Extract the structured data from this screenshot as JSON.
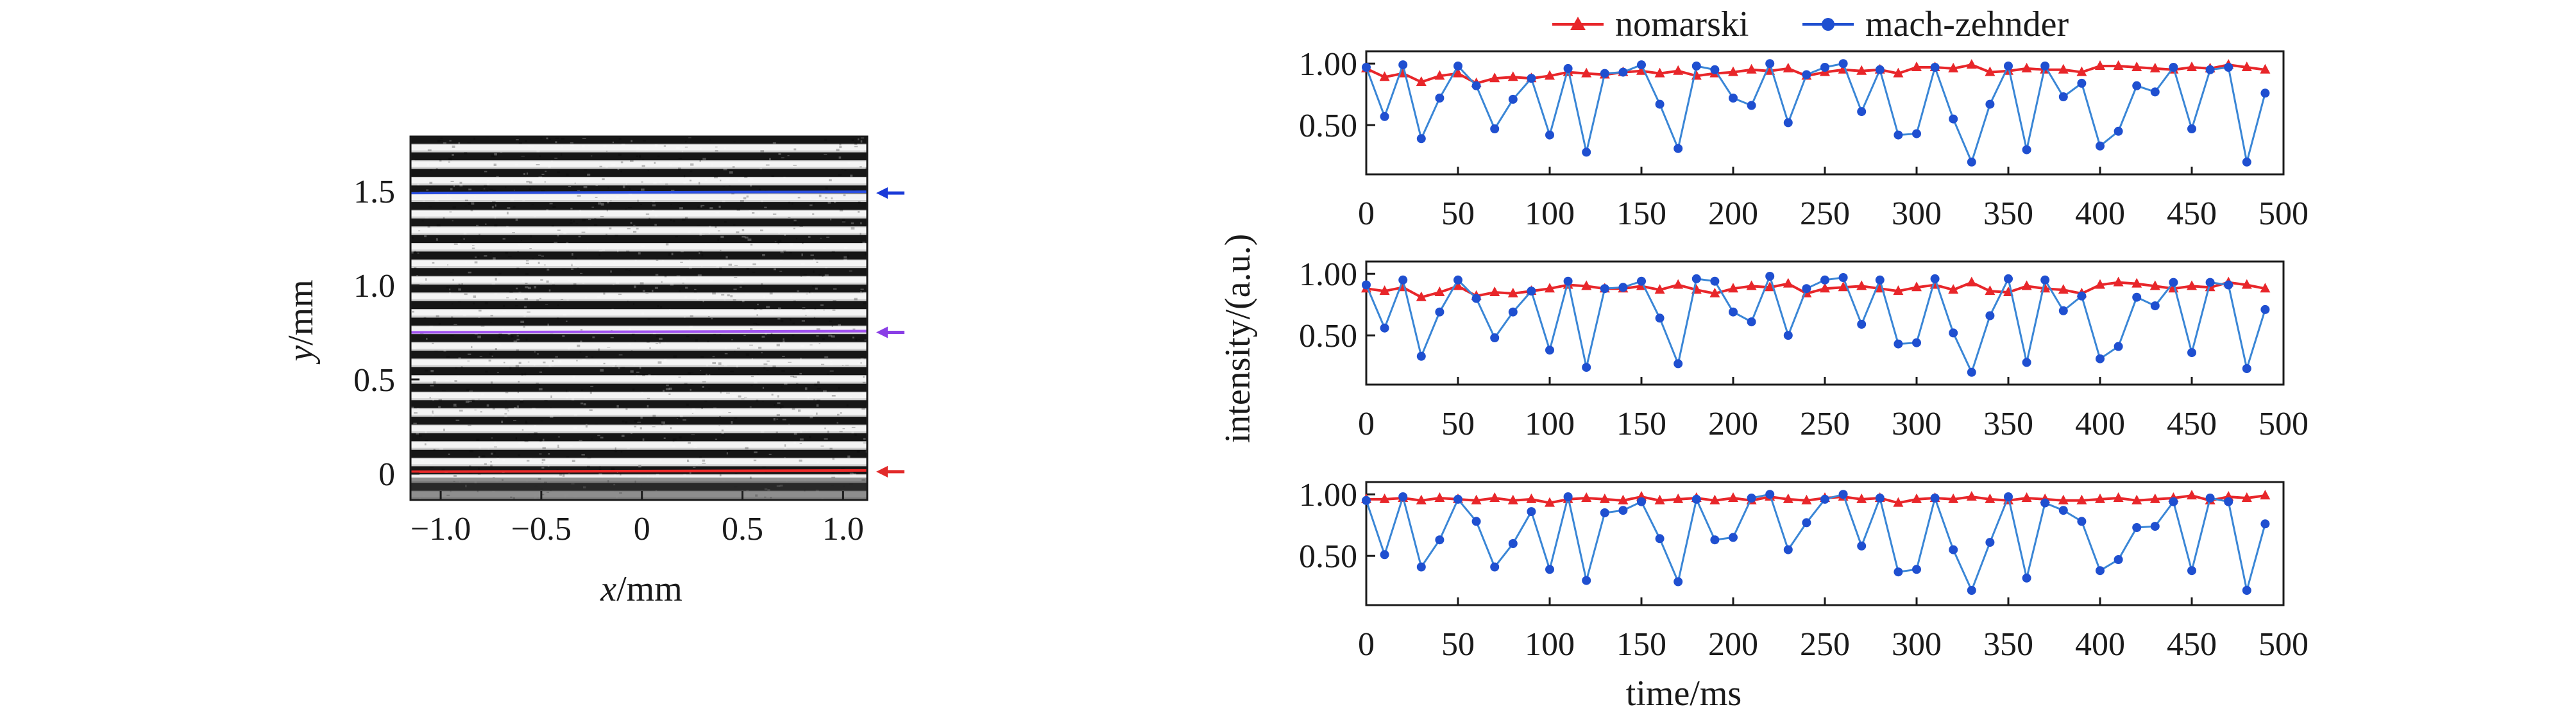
{
  "colors": {
    "nomarski": "#e8262a",
    "mach_zehnder": "#1f4fd0",
    "mach_zehnder_line": "#3a86d6",
    "line_blue": "#2b4fe0",
    "line_purple": "#a050f0",
    "line_red": "#ee2a2a",
    "arrow_blue": "#1a3ad8",
    "arrow_purple": "#8a3ee6",
    "arrow_red": "#e22a2a",
    "axis": "#1a1a1a"
  },
  "chart_data": [
    {
      "type": "heatmap",
      "description_kind": "interference-fringe-image",
      "xlabel": {
        "var": "x",
        "unit": "/mm"
      },
      "ylabel": {
        "var": "y",
        "unit": "/mm"
      },
      "xlim": [
        -1.15,
        1.12
      ],
      "ylim": [
        -0.14,
        1.79
      ],
      "xticks": [
        -1.0,
        -0.5,
        0,
        0.5,
        1.0
      ],
      "xtick_labels": [
        "−1.0",
        "−0.5",
        "0",
        "0.5",
        "1.0"
      ],
      "yticks": [
        0,
        0.5,
        1.0,
        1.5
      ],
      "ytick_labels": [
        "0",
        "0.5",
        "1.0",
        "1.5"
      ],
      "fringe_count": 22,
      "marked_lines": [
        {
          "y": 1.49,
          "color": "blue"
        },
        {
          "y": 0.75,
          "color": "purple"
        },
        {
          "y": 0.01,
          "color": "red"
        }
      ]
    },
    {
      "type": "line",
      "xlabel": "time/ms",
      "ylabel": "intensity/(a.u.)",
      "xlim": [
        0,
        500
      ],
      "xticks": [
        0,
        50,
        100,
        150,
        200,
        250,
        300,
        350,
        400,
        450,
        500
      ],
      "ylim": [
        0.1,
        1.1
      ],
      "yticks": [
        0.5,
        1.0
      ],
      "ytick_labels": [
        "0.50",
        "1.00"
      ],
      "legend": {
        "position": "top",
        "entries": [
          "nomarski",
          "mach-zehnder"
        ]
      },
      "x": [
        0,
        10,
        20,
        30,
        40,
        50,
        60,
        70,
        80,
        90,
        100,
        110,
        120,
        130,
        140,
        150,
        160,
        170,
        180,
        190,
        200,
        210,
        220,
        230,
        240,
        250,
        260,
        270,
        280,
        290,
        300,
        310,
        320,
        330,
        340,
        350,
        360,
        370,
        380,
        390,
        400,
        410,
        420,
        430,
        440,
        450,
        460,
        470,
        480,
        490
      ],
      "panels": [
        {
          "series": [
            {
              "name": "nomarski",
              "values": [
                0.96,
                0.89,
                0.92,
                0.85,
                0.9,
                0.92,
                0.84,
                0.88,
                0.89,
                0.88,
                0.9,
                0.93,
                0.92,
                0.91,
                0.93,
                0.94,
                0.92,
                0.94,
                0.9,
                0.92,
                0.93,
                0.95,
                0.94,
                0.96,
                0.9,
                0.93,
                0.95,
                0.94,
                0.95,
                0.92,
                0.97,
                0.97,
                0.96,
                0.99,
                0.93,
                0.94,
                0.96,
                0.95,
                0.95,
                0.93,
                0.98,
                0.98,
                0.97,
                0.96,
                0.95,
                0.97,
                0.96,
                0.99,
                0.97,
                0.95
              ]
            },
            {
              "name": "mach-zehnder",
              "values": [
                0.97,
                0.57,
                0.99,
                0.39,
                0.72,
                0.98,
                0.82,
                0.47,
                0.71,
                0.88,
                0.42,
                0.96,
                0.28,
                0.92,
                0.93,
                0.99,
                0.67,
                0.31,
                0.98,
                0.95,
                0.72,
                0.66,
                1.0,
                0.52,
                0.91,
                0.97,
                1.0,
                0.61,
                0.95,
                0.42,
                0.43,
                0.97,
                0.55,
                0.2,
                0.67,
                0.98,
                0.3,
                0.98,
                0.73,
                0.84,
                0.33,
                0.45,
                0.82,
                0.77,
                0.97,
                0.47,
                0.95,
                0.97,
                0.2,
                0.76
              ]
            }
          ]
        },
        {
          "series": [
            {
              "name": "nomarski",
              "values": [
                0.88,
                0.86,
                0.89,
                0.81,
                0.85,
                0.9,
                0.82,
                0.85,
                0.84,
                0.86,
                0.88,
                0.91,
                0.9,
                0.88,
                0.88,
                0.9,
                0.87,
                0.91,
                0.87,
                0.84,
                0.88,
                0.9,
                0.89,
                0.92,
                0.84,
                0.88,
                0.89,
                0.9,
                0.88,
                0.86,
                0.89,
                0.91,
                0.87,
                0.93,
                0.86,
                0.85,
                0.9,
                0.88,
                0.87,
                0.84,
                0.91,
                0.93,
                0.92,
                0.9,
                0.88,
                0.9,
                0.89,
                0.93,
                0.91,
                0.88
              ]
            },
            {
              "name": "mach-zehnder",
              "values": [
                0.91,
                0.56,
                0.95,
                0.33,
                0.69,
                0.95,
                0.8,
                0.48,
                0.69,
                0.86,
                0.38,
                0.94,
                0.24,
                0.88,
                0.89,
                0.94,
                0.64,
                0.27,
                0.96,
                0.94,
                0.69,
                0.61,
                0.98,
                0.5,
                0.88,
                0.95,
                0.97,
                0.59,
                0.95,
                0.43,
                0.44,
                0.96,
                0.52,
                0.2,
                0.66,
                0.96,
                0.28,
                0.95,
                0.7,
                0.82,
                0.31,
                0.41,
                0.81,
                0.74,
                0.93,
                0.36,
                0.93,
                0.91,
                0.23,
                0.71
              ]
            }
          ]
        },
        {
          "series": [
            {
              "name": "nomarski",
              "values": [
                0.96,
                0.96,
                0.97,
                0.95,
                0.97,
                0.96,
                0.95,
                0.97,
                0.95,
                0.96,
                0.93,
                0.96,
                0.97,
                0.96,
                0.95,
                0.98,
                0.95,
                0.96,
                0.97,
                0.95,
                0.97,
                0.95,
                0.98,
                0.96,
                0.95,
                0.97,
                0.98,
                0.96,
                0.97,
                0.93,
                0.96,
                0.97,
                0.96,
                0.98,
                0.96,
                0.95,
                0.97,
                0.96,
                0.95,
                0.95,
                0.96,
                0.97,
                0.95,
                0.96,
                0.97,
                0.99,
                0.95,
                0.98,
                0.97,
                0.99
              ]
            },
            {
              "name": "mach-zehnder",
              "values": [
                0.95,
                0.51,
                0.98,
                0.41,
                0.63,
                0.96,
                0.78,
                0.41,
                0.6,
                0.86,
                0.39,
                0.98,
                0.3,
                0.85,
                0.87,
                0.94,
                0.64,
                0.29,
                0.96,
                0.63,
                0.65,
                0.97,
                1.0,
                0.55,
                0.77,
                0.96,
                1.0,
                0.58,
                0.97,
                0.37,
                0.39,
                0.97,
                0.55,
                0.22,
                0.61,
                0.98,
                0.32,
                0.93,
                0.87,
                0.78,
                0.38,
                0.47,
                0.73,
                0.74,
                0.94,
                0.38,
                0.97,
                0.94,
                0.22,
                0.76
              ]
            }
          ]
        }
      ]
    }
  ]
}
